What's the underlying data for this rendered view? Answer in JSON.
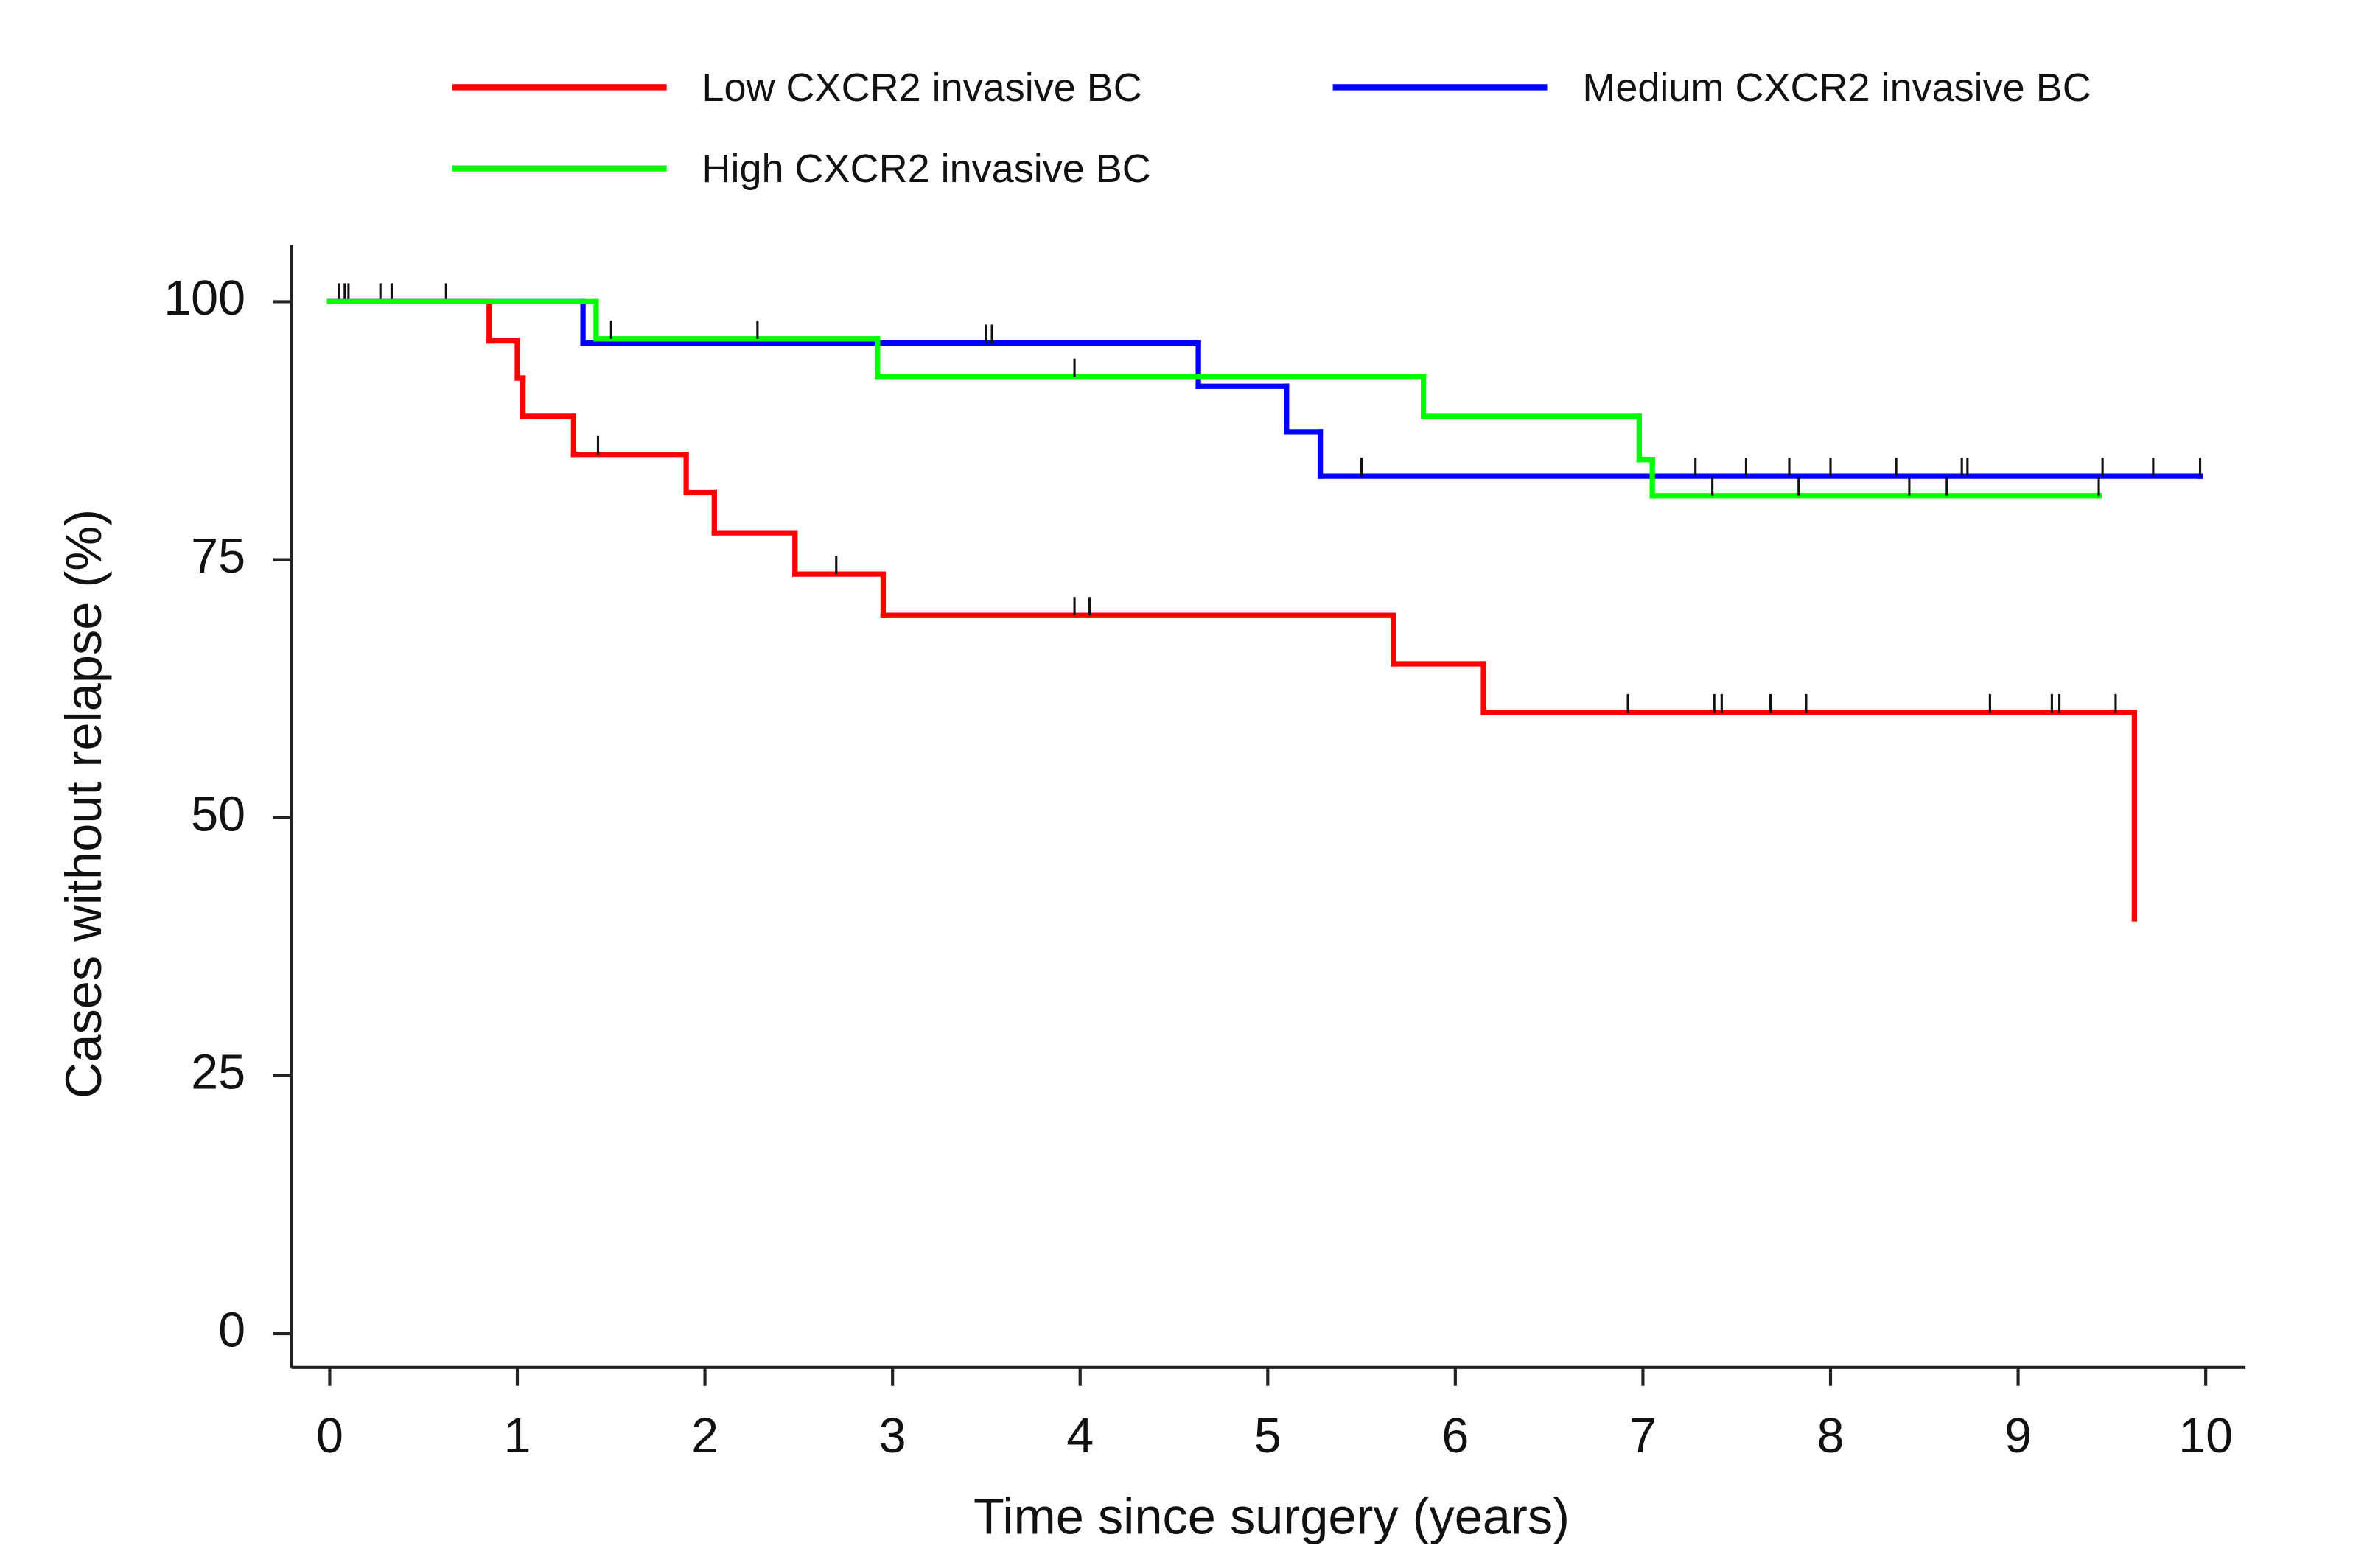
{
  "chart_data": {
    "type": "step",
    "xlabel": "Time since surgery (years)",
    "ylabel": "Cases without relapse (%)",
    "xlim": [
      0,
      10
    ],
    "ylim": [
      0,
      100
    ],
    "xticks": [
      0,
      1,
      2,
      3,
      4,
      5,
      6,
      7,
      8,
      9,
      10
    ],
    "yticks": [
      0,
      25,
      50,
      75,
      100
    ],
    "grid": false,
    "series": [
      {
        "name": "Low CXCR2 invasive BC",
        "color": "#ff0000",
        "x": [
          0,
          0.85,
          1.0,
          1.03,
          1.3,
          1.9,
          2.05,
          2.48,
          2.95,
          5.67,
          6.15,
          9.62
        ],
        "values": [
          100,
          96.2,
          92.6,
          88.9,
          85.2,
          81.5,
          77.6,
          73.6,
          69.6,
          64.9,
          60.2,
          40.2
        ],
        "censored": [
          0.05,
          0.08,
          0.1,
          0.27,
          0.33,
          0.62,
          1.43,
          2.7,
          3.97,
          4.05,
          6.92,
          7.38,
          7.42,
          7.68,
          7.87,
          8.85,
          9.18,
          9.22,
          9.52
        ]
      },
      {
        "name": "Medium CXCR2 invasive BC",
        "color": "#0000ff",
        "x": [
          0,
          1.35,
          4.63,
          5.1,
          5.28,
          9.97
        ],
        "values": [
          100,
          96.0,
          91.8,
          87.4,
          83.1,
          83.1
        ],
        "censored": [
          3.5,
          3.53,
          5.5,
          7.28,
          7.55,
          7.78,
          8.0,
          8.35,
          8.7,
          8.73,
          9.45,
          9.72,
          9.97
        ]
      },
      {
        "name": "High CXCR2 invasive BC",
        "color": "#00ff00",
        "x": [
          0,
          1.42,
          2.92,
          5.83,
          6.98,
          7.05,
          9.43
        ],
        "values": [
          100,
          96.4,
          92.7,
          88.9,
          84.7,
          81.2,
          81.2
        ],
        "censored": [
          1.5,
          2.28,
          3.97,
          7.37,
          7.83,
          8.42,
          8.62,
          9.43
        ]
      }
    ]
  }
}
